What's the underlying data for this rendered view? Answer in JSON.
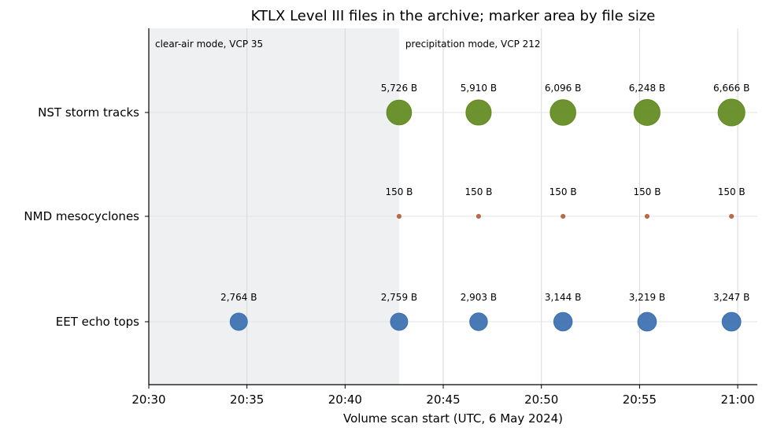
{
  "chart_data": {
    "type": "scatter",
    "title": "KTLX Level III files in the archive; marker area by file size",
    "xlabel": "Volume scan start (UTC, 6 May 2024)",
    "ylabel": "",
    "x_ticks": [
      "20:30",
      "20:35",
      "20:40",
      "20:45",
      "20:50",
      "20:55",
      "21:00"
    ],
    "xlim": [
      "20:30",
      "21:01"
    ],
    "categories": [
      "EET echo tops",
      "NMD mesocyclones",
      "NST storm tracks"
    ],
    "grid": true,
    "regions": [
      {
        "label": "clear-air mode, VCP 35",
        "from": "20:30",
        "to": "20:42:45",
        "shaded": true
      },
      {
        "label": "precipitation mode, VCP 212",
        "from": "20:42:45",
        "to": "21:01",
        "shaded": false
      }
    ],
    "series": [
      {
        "category": "EET echo tops",
        "color": "#3a6faf",
        "points": [
          {
            "x": "20:34:35",
            "size": 2764,
            "label": "2,764 B"
          },
          {
            "x": "20:42:45",
            "size": 2759,
            "label": "2,759 B"
          },
          {
            "x": "20:46:48",
            "size": 2903,
            "label": "2,903 B"
          },
          {
            "x": "20:51:06",
            "size": 3144,
            "label": "3,144 B"
          },
          {
            "x": "20:55:23",
            "size": 3219,
            "label": "3,219 B"
          },
          {
            "x": "20:59:41",
            "size": 3247,
            "label": "3,247 B"
          }
        ]
      },
      {
        "category": "NMD mesocyclones",
        "color": "#b5603f",
        "points": [
          {
            "x": "20:42:45",
            "size": 150,
            "label": "150 B"
          },
          {
            "x": "20:46:48",
            "size": 150,
            "label": "150 B"
          },
          {
            "x": "20:51:06",
            "size": 150,
            "label": "150 B"
          },
          {
            "x": "20:55:23",
            "size": 150,
            "label": "150 B"
          },
          {
            "x": "20:59:41",
            "size": 150,
            "label": "150 B"
          }
        ]
      },
      {
        "category": "NST storm tracks",
        "color": "#5f8a1e",
        "points": [
          {
            "x": "20:42:45",
            "size": 5726,
            "label": "5,726 B"
          },
          {
            "x": "20:46:48",
            "size": 5910,
            "label": "5,910 B"
          },
          {
            "x": "20:51:06",
            "size": 6096,
            "label": "6,096 B"
          },
          {
            "x": "20:55:23",
            "size": 6248,
            "label": "6,248 B"
          },
          {
            "x": "20:59:41",
            "size": 6666,
            "label": "6,666 B"
          }
        ]
      }
    ]
  }
}
